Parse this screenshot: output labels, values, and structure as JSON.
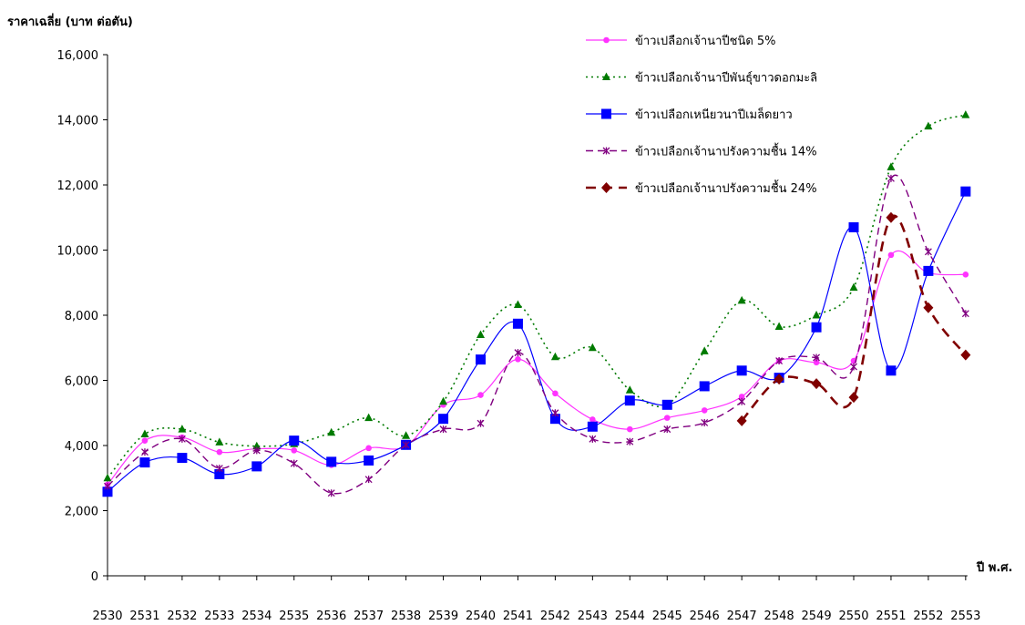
{
  "chart_data": {
    "type": "line",
    "title": "",
    "ylabel": "ราคาเฉลี่ย (บาท ต่อตัน)",
    "xlabel": "ปี พ.ศ.",
    "ylim": [
      0,
      16000
    ],
    "yticks": [
      0,
      2000,
      4000,
      6000,
      8000,
      10000,
      12000,
      14000,
      16000
    ],
    "ytick_labels": [
      "0",
      "2,000",
      "4,000",
      "6,000",
      "8,000",
      "10,000",
      "12,000",
      "14,000",
      "16,000"
    ],
    "categories": [
      "2530",
      "2531",
      "2532",
      "2533",
      "2534",
      "2535",
      "2536",
      "2537",
      "2538",
      "2539",
      "2540",
      "2541",
      "2542",
      "2543",
      "2544",
      "2545",
      "2546",
      "2547",
      "2548",
      "2549",
      "2550",
      "2551",
      "2552",
      "2553"
    ],
    "legend_position": "top-right",
    "grid": false,
    "series": [
      {
        "name": "ข้าวเปลือกเจ้านาปีชนิด 5%",
        "color": "#ff33ff",
        "marker": "circle",
        "dash": "solid",
        "values": [
          2800,
          4150,
          4250,
          3800,
          3900,
          3850,
          3400,
          3920,
          3980,
          5250,
          5550,
          6650,
          5600,
          4800,
          4500,
          4850,
          5080,
          5500,
          6600,
          6550,
          6600,
          9850,
          9300,
          9250
        ]
      },
      {
        "name": "ข้าวเปลือกเจ้านาปีพันธุ์ขาวดอกมะลิ",
        "color": "#007a00",
        "marker": "triangle",
        "dash": "dotted",
        "values": [
          3000,
          4350,
          4500,
          4100,
          3980,
          4050,
          4400,
          4850,
          4300,
          5350,
          7400,
          8320,
          6720,
          7000,
          5700,
          5250,
          6900,
          8450,
          7650,
          8000,
          8850,
          12550,
          13800,
          14150
        ]
      },
      {
        "name": "ข้าวเปลือกเหนียวนาปีเมล็ดยาว",
        "color": "#0000ff",
        "marker": "square",
        "dash": "solid",
        "values": [
          2580,
          3480,
          3620,
          3120,
          3360,
          4150,
          3500,
          3540,
          4020,
          4820,
          6640,
          7740,
          4820,
          4580,
          5380,
          5250,
          5820,
          6300,
          6080,
          7630,
          10700,
          6300,
          9360,
          11800
        ]
      },
      {
        "name": "ข้าวเปลือกเจ้านาปรังความชื้น 14%",
        "color": "#800080",
        "marker": "cross",
        "dash": "dashed",
        "values": [
          2750,
          3800,
          4200,
          3300,
          3850,
          3450,
          2540,
          2960,
          4020,
          4500,
          4680,
          6850,
          5000,
          4200,
          4120,
          4500,
          4700,
          5350,
          6600,
          6700,
          6420,
          12200,
          9950,
          8050
        ]
      },
      {
        "name": "ข้าวเปลือกเจ้านาปรังความชื้น 24%",
        "color": "#800000",
        "marker": "diamond",
        "dash": "longdash",
        "values": [
          null,
          null,
          null,
          null,
          null,
          null,
          null,
          null,
          null,
          null,
          null,
          null,
          null,
          null,
          null,
          null,
          null,
          4760,
          6040,
          5900,
          5480,
          11000,
          8230,
          6780
        ]
      }
    ]
  }
}
